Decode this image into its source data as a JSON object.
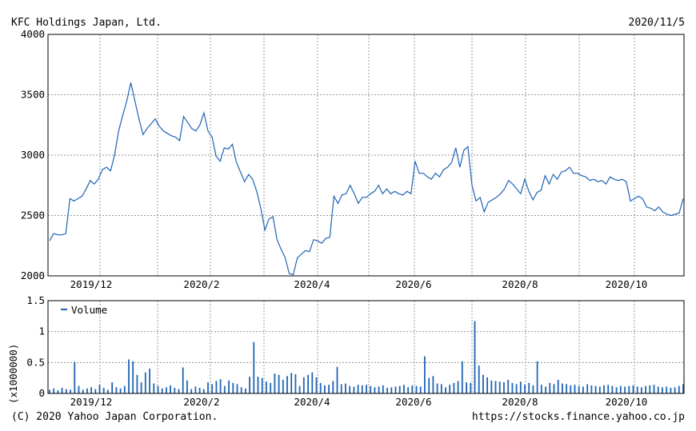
{
  "header": {
    "company": "KFC Holdings Japan, Ltd.",
    "date": "2020/11/5"
  },
  "footer": {
    "copyright": "(C) 2020 Yahoo Japan Corporation.",
    "url": "https://stocks.finance.yahoo.co.jp"
  },
  "colors": {
    "line": "#1f64b4",
    "grid": "#999999",
    "frame": "#000000"
  },
  "chart_data": [
    {
      "type": "line",
      "title": "KFC Holdings Japan, Ltd.",
      "x_ticks": [
        "2019/12",
        "2020/2",
        "2020/4",
        "2020/6",
        "2020/8",
        "2020/10"
      ],
      "y_ticks": [
        2000,
        2500,
        3000,
        3500,
        4000
      ],
      "ylim": [
        2000,
        4000
      ],
      "grid": true,
      "series": [
        {
          "values": [
            2290,
            2350,
            2340,
            2340,
            2350,
            2640,
            2620,
            2640,
            2660,
            2720,
            2790,
            2760,
            2800,
            2880,
            2900,
            2870,
            3000,
            3200,
            3330,
            3450,
            3600,
            3450,
            3300,
            3170,
            3220,
            3260,
            3300,
            3240,
            3200,
            3180,
            3160,
            3150,
            3120,
            3320,
            3270,
            3220,
            3200,
            3250,
            3350,
            3200,
            3150,
            2990,
            2950,
            3060,
            3050,
            3090,
            2940,
            2860,
            2780,
            2840,
            2800,
            2700,
            2560,
            2380,
            2470,
            2490,
            2300,
            2220,
            2150,
            2020,
            2010,
            2150,
            2180,
            2210,
            2200,
            2300,
            2290,
            2270,
            2310,
            2320,
            2660,
            2600,
            2670,
            2680,
            2750,
            2680,
            2600,
            2650,
            2650,
            2680,
            2700,
            2750,
            2680,
            2720,
            2680,
            2700,
            2680,
            2670,
            2700,
            2680,
            2950,
            2850,
            2850,
            2820,
            2800,
            2850,
            2820,
            2880,
            2900,
            2940,
            3060,
            2900,
            3040,
            3070,
            2750,
            2620,
            2650,
            2530,
            2610,
            2630,
            2650,
            2680,
            2720,
            2790,
            2760,
            2720,
            2680,
            2800,
            2700,
            2630,
            2690,
            2710,
            2830,
            2760,
            2840,
            2800,
            2860,
            2870,
            2900,
            2850,
            2850,
            2830,
            2820,
            2790,
            2800,
            2780,
            2790,
            2760,
            2820,
            2800,
            2790,
            2800,
            2780,
            2620,
            2640,
            2660,
            2640,
            2570,
            2560,
            2540,
            2570,
            2530,
            2510,
            2500,
            2510,
            2520,
            2640
          ]
        }
      ]
    },
    {
      "type": "bar",
      "legend": "Volume",
      "ylabel": "(x1000000)",
      "y_ticks": [
        0,
        0.5,
        1,
        1.5
      ],
      "ylim": [
        0,
        1.5
      ],
      "grid": true,
      "values": [
        0.06,
        0.08,
        0.05,
        0.09,
        0.07,
        0.06,
        0.51,
        0.12,
        0.06,
        0.08,
        0.1,
        0.07,
        0.14,
        0.09,
        0.06,
        0.18,
        0.1,
        0.08,
        0.12,
        0.55,
        0.52,
        0.3,
        0.18,
        0.34,
        0.4,
        0.16,
        0.12,
        0.08,
        0.1,
        0.13,
        0.09,
        0.07,
        0.42,
        0.21,
        0.07,
        0.11,
        0.09,
        0.07,
        0.18,
        0.15,
        0.2,
        0.23,
        0.12,
        0.21,
        0.17,
        0.15,
        0.1,
        0.08,
        0.27,
        0.83,
        0.27,
        0.25,
        0.19,
        0.17,
        0.32,
        0.3,
        0.22,
        0.28,
        0.33,
        0.31,
        0.12,
        0.26,
        0.3,
        0.34,
        0.26,
        0.17,
        0.13,
        0.14,
        0.2,
        0.43,
        0.15,
        0.16,
        0.12,
        0.11,
        0.14,
        0.13,
        0.14,
        0.12,
        0.1,
        0.11,
        0.13,
        0.09,
        0.1,
        0.11,
        0.12,
        0.14,
        0.1,
        0.13,
        0.12,
        0.11,
        0.6,
        0.25,
        0.28,
        0.16,
        0.15,
        0.1,
        0.14,
        0.17,
        0.2,
        0.52,
        0.18,
        0.17,
        1.17,
        0.45,
        0.3,
        0.26,
        0.21,
        0.2,
        0.19,
        0.18,
        0.22,
        0.17,
        0.15,
        0.19,
        0.14,
        0.17,
        0.13,
        0.52,
        0.14,
        0.11,
        0.17,
        0.15,
        0.22,
        0.16,
        0.15,
        0.13,
        0.14,
        0.12,
        0.11,
        0.15,
        0.13,
        0.12,
        0.11,
        0.13,
        0.14,
        0.12,
        0.1,
        0.12,
        0.11,
        0.12,
        0.13,
        0.11,
        0.1,
        0.12,
        0.13,
        0.14,
        0.11,
        0.1,
        0.11,
        0.09,
        0.1,
        0.12,
        0.15
      ]
    }
  ]
}
